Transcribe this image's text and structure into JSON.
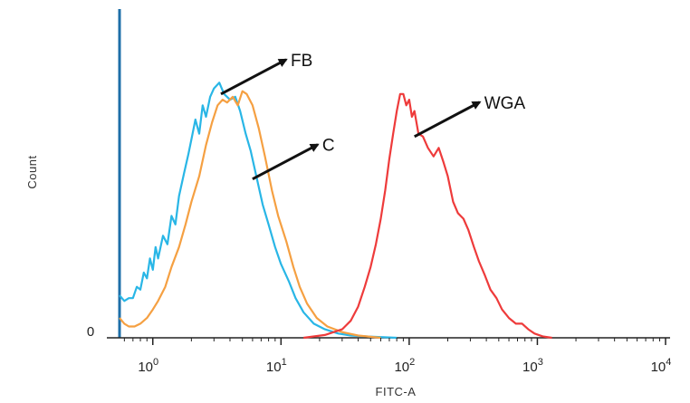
{
  "chart_data": {
    "type": "line",
    "title": "",
    "xlabel": "FITC-A",
    "ylabel": "Count",
    "x_scale": "log",
    "xlim": [
      0.55,
      10000
    ],
    "ylim": [
      0,
      100
    ],
    "grid": false,
    "legend": "none",
    "x_ticks": [
      {
        "value": 1,
        "base": "10",
        "exp": "0"
      },
      {
        "value": 10,
        "base": "10",
        "exp": "1"
      },
      {
        "value": 100,
        "base": "10",
        "exp": "2"
      },
      {
        "value": 1000,
        "base": "10",
        "exp": "3"
      },
      {
        "value": 10000,
        "base": "10",
        "exp": "4"
      }
    ],
    "y_ticks": [
      {
        "value": 0,
        "label": "0"
      }
    ],
    "series": [
      {
        "color": "#29b6e6",
        "points": [
          [
            0.55,
            15
          ],
          [
            0.6,
            13
          ],
          [
            0.65,
            14
          ],
          [
            0.7,
            14
          ],
          [
            0.75,
            18
          ],
          [
            0.8,
            17
          ],
          [
            0.85,
            23
          ],
          [
            0.9,
            21
          ],
          [
            0.95,
            28
          ],
          [
            1.0,
            24
          ],
          [
            1.05,
            32
          ],
          [
            1.1,
            28
          ],
          [
            1.2,
            36
          ],
          [
            1.3,
            33
          ],
          [
            1.4,
            43
          ],
          [
            1.5,
            40
          ],
          [
            1.6,
            50
          ],
          [
            1.75,
            58
          ],
          [
            1.9,
            65
          ],
          [
            2.0,
            70
          ],
          [
            2.15,
            77
          ],
          [
            2.3,
            72
          ],
          [
            2.45,
            82
          ],
          [
            2.6,
            78
          ],
          [
            2.8,
            85
          ],
          [
            3.0,
            88
          ],
          [
            3.3,
            90
          ],
          [
            3.6,
            86
          ],
          [
            4.0,
            84
          ],
          [
            4.4,
            85
          ],
          [
            4.8,
            80
          ],
          [
            5.3,
            72
          ],
          [
            5.8,
            66
          ],
          [
            6.5,
            56
          ],
          [
            7.2,
            47
          ],
          [
            8.0,
            40
          ],
          [
            9.0,
            32
          ],
          [
            10,
            26
          ],
          [
            11.5,
            20
          ],
          [
            13,
            14
          ],
          [
            15,
            9
          ],
          [
            18,
            5
          ],
          [
            22,
            3
          ],
          [
            28,
            1.5
          ],
          [
            35,
            0.8
          ],
          [
            50,
            0.4
          ],
          [
            80,
            0
          ]
        ]
      },
      {
        "color": "#f5a042",
        "points": [
          [
            0.55,
            7
          ],
          [
            0.6,
            5
          ],
          [
            0.65,
            4
          ],
          [
            0.72,
            4
          ],
          [
            0.8,
            5
          ],
          [
            0.9,
            7
          ],
          [
            1.0,
            10
          ],
          [
            1.1,
            13
          ],
          [
            1.25,
            18
          ],
          [
            1.4,
            25
          ],
          [
            1.6,
            32
          ],
          [
            1.8,
            40
          ],
          [
            2.0,
            48
          ],
          [
            2.3,
            57
          ],
          [
            2.6,
            68
          ],
          [
            2.9,
            76
          ],
          [
            3.2,
            82
          ],
          [
            3.5,
            84
          ],
          [
            3.8,
            83
          ],
          [
            4.2,
            85
          ],
          [
            4.6,
            82
          ],
          [
            5.0,
            87
          ],
          [
            5.4,
            86
          ],
          [
            6.0,
            82
          ],
          [
            6.7,
            74
          ],
          [
            7.5,
            64
          ],
          [
            8.5,
            52
          ],
          [
            9.5,
            43
          ],
          [
            11,
            34
          ],
          [
            12.5,
            25
          ],
          [
            14,
            18
          ],
          [
            16,
            12
          ],
          [
            19,
            7
          ],
          [
            23,
            4
          ],
          [
            30,
            2
          ],
          [
            40,
            0.8
          ],
          [
            60,
            0
          ]
        ]
      },
      {
        "color": "#ee3b3b",
        "points": [
          [
            15,
            0
          ],
          [
            22,
            1
          ],
          [
            30,
            3
          ],
          [
            35,
            6
          ],
          [
            40,
            11
          ],
          [
            45,
            18
          ],
          [
            50,
            25
          ],
          [
            55,
            33
          ],
          [
            60,
            42
          ],
          [
            65,
            52
          ],
          [
            70,
            63
          ],
          [
            75,
            72
          ],
          [
            80,
            80
          ],
          [
            85,
            86
          ],
          [
            90,
            86
          ],
          [
            95,
            82
          ],
          [
            100,
            84
          ],
          [
            105,
            78
          ],
          [
            110,
            80
          ],
          [
            118,
            72
          ],
          [
            128,
            71
          ],
          [
            140,
            67
          ],
          [
            155,
            64
          ],
          [
            170,
            67
          ],
          [
            185,
            62
          ],
          [
            200,
            57
          ],
          [
            220,
            48
          ],
          [
            240,
            44
          ],
          [
            265,
            42
          ],
          [
            290,
            38
          ],
          [
            320,
            32
          ],
          [
            350,
            27
          ],
          [
            390,
            22
          ],
          [
            430,
            17
          ],
          [
            480,
            14
          ],
          [
            530,
            10
          ],
          [
            600,
            7
          ],
          [
            680,
            5
          ],
          [
            760,
            5
          ],
          [
            850,
            3
          ],
          [
            950,
            1.5
          ],
          [
            1100,
            0.5
          ],
          [
            1300,
            0
          ]
        ]
      }
    ],
    "annotations": [
      {
        "text": "FB",
        "x": 3.4,
        "y": 86
      },
      {
        "text": "C",
        "x": 6.0,
        "y": 56
      },
      {
        "text": "WGA",
        "x": 110,
        "y": 71
      }
    ]
  }
}
